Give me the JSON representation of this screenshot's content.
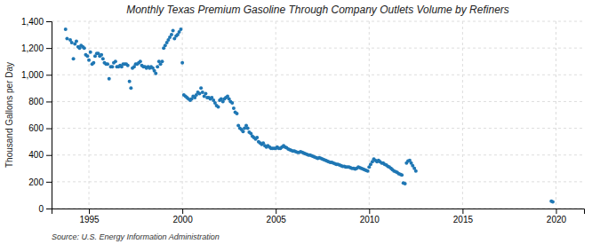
{
  "chart_data": {
    "type": "scatter",
    "title": "Monthly Texas Premium Gasoline Through Company Outlets Volume by Refiners",
    "y_label": "Thousand Gallons per Day",
    "annotations": [
      "Source: U.S. Energy Information Administration"
    ],
    "x": [
      1993.75,
      1993.83,
      1994.0,
      1994.08,
      1994.17,
      1994.25,
      1994.33,
      1994.42,
      1994.5,
      1994.58,
      1994.67,
      1994.75,
      1994.83,
      1994.92,
      1995.0,
      1995.08,
      1995.17,
      1995.25,
      1995.33,
      1995.42,
      1995.5,
      1995.58,
      1995.67,
      1995.75,
      1995.83,
      1995.92,
      1996.0,
      1996.08,
      1996.17,
      1996.25,
      1996.33,
      1996.42,
      1996.5,
      1996.58,
      1996.67,
      1996.75,
      1996.83,
      1996.92,
      1997.0,
      1997.08,
      1997.17,
      1997.25,
      1997.33,
      1997.42,
      1997.5,
      1997.58,
      1997.67,
      1997.75,
      1997.83,
      1997.92,
      1998.0,
      1998.08,
      1998.17,
      1998.25,
      1998.33,
      1998.42,
      1998.5,
      1998.58,
      1998.67,
      1998.75,
      1998.83,
      1998.92,
      1999.0,
      1999.08,
      1999.17,
      1999.25,
      1999.33,
      1999.42,
      1999.5,
      1999.58,
      1999.67,
      1999.75,
      1999.83,
      1999.92,
      2000.0,
      2000.08,
      2000.17,
      2000.25,
      2000.33,
      2000.42,
      2000.5,
      2000.58,
      2000.67,
      2000.75,
      2000.83,
      2000.92,
      2001.0,
      2001.08,
      2001.17,
      2001.25,
      2001.33,
      2001.42,
      2001.5,
      2001.58,
      2001.67,
      2001.75,
      2001.83,
      2001.92,
      2002.0,
      2002.08,
      2002.17,
      2002.25,
      2002.33,
      2002.42,
      2002.5,
      2002.58,
      2002.67,
      2002.75,
      2002.83,
      2002.92,
      2003.0,
      2003.08,
      2003.17,
      2003.25,
      2003.33,
      2003.42,
      2003.5,
      2003.58,
      2003.67,
      2003.75,
      2003.83,
      2003.92,
      2004.0,
      2004.08,
      2004.17,
      2004.25,
      2004.33,
      2004.42,
      2004.5,
      2004.58,
      2004.67,
      2004.75,
      2004.83,
      2004.92,
      2005.0,
      2005.08,
      2005.17,
      2005.25,
      2005.33,
      2005.42,
      2005.5,
      2005.58,
      2005.67,
      2005.75,
      2005.83,
      2005.92,
      2006.0,
      2006.08,
      2006.17,
      2006.25,
      2006.33,
      2006.42,
      2006.5,
      2006.58,
      2006.67,
      2006.75,
      2006.83,
      2006.92,
      2007.0,
      2007.08,
      2007.17,
      2007.25,
      2007.33,
      2007.42,
      2007.5,
      2007.58,
      2007.67,
      2007.75,
      2007.83,
      2007.92,
      2008.0,
      2008.08,
      2008.17,
      2008.25,
      2008.33,
      2008.42,
      2008.5,
      2008.58,
      2008.67,
      2008.75,
      2008.83,
      2008.92,
      2009.0,
      2009.08,
      2009.17,
      2009.25,
      2009.33,
      2009.42,
      2009.5,
      2009.58,
      2009.67,
      2009.75,
      2009.83,
      2009.92,
      2010.0,
      2010.08,
      2010.17,
      2010.25,
      2010.33,
      2010.42,
      2010.5,
      2010.58,
      2010.67,
      2010.75,
      2010.83,
      2010.92,
      2011.0,
      2011.08,
      2011.17,
      2011.25,
      2011.33,
      2011.42,
      2011.5,
      2011.58,
      2011.67,
      2011.75,
      2011.83,
      2011.92,
      2012.0,
      2012.08,
      2012.17,
      2012.25,
      2012.33,
      2012.42,
      2012.5,
      2019.75,
      2019.83
    ],
    "values": [
      1340,
      1270,
      1260,
      1240,
      1120,
      1230,
      1250,
      1210,
      1200,
      1220,
      1210,
      1200,
      1150,
      1140,
      1110,
      1170,
      1080,
      1090,
      1140,
      1160,
      1160,
      1140,
      1150,
      1120,
      1090,
      1080,
      1080,
      970,
      1060,
      1060,
      1090,
      1100,
      1060,
      1060,
      1070,
      1060,
      1080,
      1080,
      1080,
      1070,
      950,
      900,
      1050,
      1060,
      1080,
      1080,
      1090,
      1100,
      1070,
      1060,
      1060,
      1050,
      1060,
      1050,
      1060,
      1050,
      1030,
      1010,
      1060,
      1100,
      1080,
      1100,
      1200,
      1220,
      1240,
      1260,
      1280,
      1300,
      1330,
      1270,
      1290,
      1300,
      1320,
      1340,
      1090,
      850,
      840,
      830,
      820,
      810,
      820,
      840,
      830,
      850,
      870,
      860,
      900,
      870,
      840,
      860,
      830,
      830,
      820,
      830,
      810,
      790,
      770,
      760,
      810,
      820,
      800,
      820,
      830,
      840,
      820,
      800,
      790,
      750,
      720,
      710,
      620,
      600,
      590,
      575,
      600,
      620,
      600,
      570,
      560,
      540,
      530,
      520,
      530,
      500,
      490,
      480,
      490,
      470,
      460,
      470,
      460,
      450,
      450,
      450,
      450,
      460,
      450,
      450,
      460,
      470,
      460,
      455,
      445,
      440,
      435,
      430,
      430,
      425,
      420,
      420,
      425,
      420,
      415,
      410,
      405,
      400,
      400,
      395,
      390,
      385,
      380,
      375,
      380,
      375,
      370,
      365,
      360,
      355,
      350,
      345,
      345,
      340,
      335,
      330,
      330,
      325,
      320,
      315,
      315,
      310,
      310,
      310,
      305,
      300,
      300,
      295,
      300,
      310,
      305,
      300,
      295,
      290,
      285,
      280,
      310,
      330,
      350,
      370,
      360,
      350,
      360,
      350,
      340,
      340,
      330,
      325,
      315,
      310,
      300,
      290,
      280,
      275,
      270,
      260,
      255,
      250,
      190,
      185,
      340,
      355,
      360,
      340,
      320,
      300,
      280,
      55,
      50
    ],
    "xlim": [
      1993.0,
      2021.5
    ],
    "ylim": [
      0,
      1400
    ],
    "xticks": [
      1995,
      2000,
      2005,
      2010,
      2015,
      2020
    ],
    "yticks": [
      0,
      200,
      400,
      600,
      800,
      {
        "value": 1000,
        "label": "1,000"
      },
      {
        "value": 1200,
        "label": "1,200"
      },
      {
        "value": 1400,
        "label": "1,400"
      }
    ],
    "grid": true
  }
}
